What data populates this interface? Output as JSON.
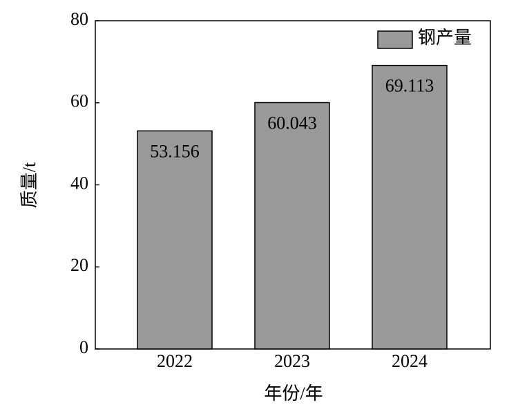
{
  "chart_data": {
    "type": "bar",
    "categories": [
      "2022",
      "2023",
      "2024"
    ],
    "series": [
      {
        "name": "钢产量",
        "color": "#999999",
        "values": [
          53.156,
          60.043,
          69.113
        ]
      }
    ],
    "ylim": [
      0,
      80
    ],
    "yticks": [
      0,
      20,
      40,
      60,
      80
    ],
    "x_label": "年份/年",
    "y_label": "质量/t",
    "legend": "upper right"
  }
}
